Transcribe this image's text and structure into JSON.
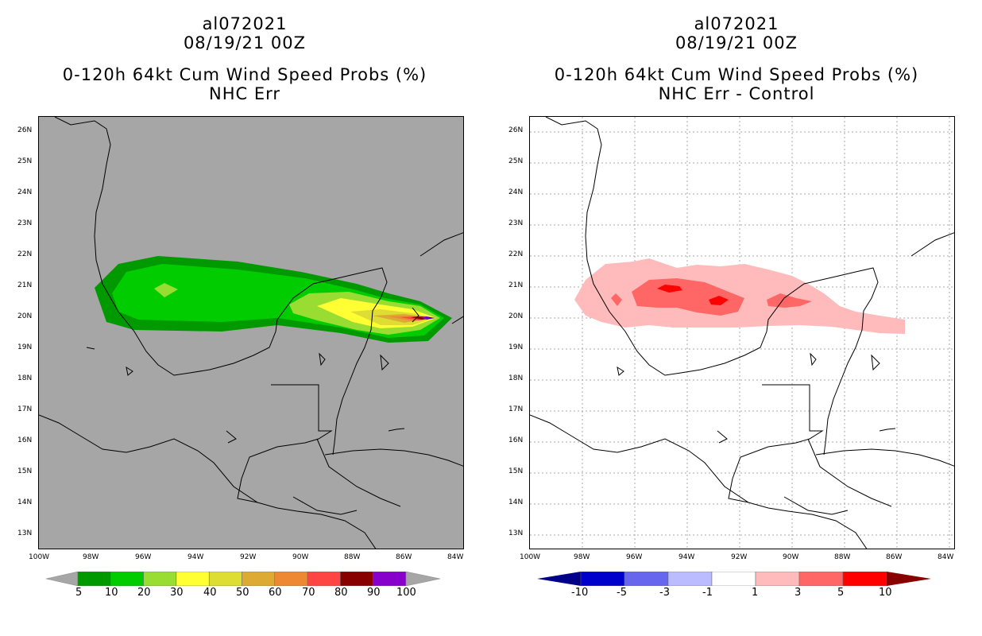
{
  "left_panel": {
    "title_line1": "al072021",
    "title_line2": "08/19/21 00Z",
    "title_line3": "0-120h 64kt Cum Wind Speed Probs (%)",
    "title_line4": "NHC Err",
    "background_color": "#a6a6a6",
    "colorbar": {
      "labels": [
        "5",
        "10",
        "20",
        "30",
        "40",
        "50",
        "60",
        "70",
        "80",
        "90",
        "100"
      ],
      "colors": [
        "#009900",
        "#00cc00",
        "#99dd33",
        "#ffff33",
        "#dddd33",
        "#ddaa33",
        "#ee8833",
        "#ff4444",
        "#880000",
        "#8800cc"
      ]
    }
  },
  "right_panel": {
    "title_line1": "al072021",
    "title_line2": "08/19/21 00Z",
    "title_line3": "0-120h 64kt Cum Wind Speed Probs (%)",
    "title_line4": "NHC Err - Control",
    "background_color": "#ffffff",
    "colorbar": {
      "labels": [
        "-10",
        "-5",
        "-3",
        "-1",
        "1",
        "3",
        "5",
        "10"
      ],
      "colors": [
        "#0000cc",
        "#6666ee",
        "#bbbbff",
        "#ffffff",
        "#ffbbbb",
        "#ff6666",
        "#ff0000"
      ]
    }
  },
  "map": {
    "lat_labels": [
      "26N",
      "25N",
      "24N",
      "23N",
      "22N",
      "21N",
      "20N",
      "19N",
      "18N",
      "17N",
      "16N",
      "15N",
      "14N",
      "13N"
    ],
    "lon_labels": [
      "100W",
      "98W",
      "96W",
      "94W",
      "92W",
      "90W",
      "88W",
      "86W",
      "84W"
    ]
  }
}
